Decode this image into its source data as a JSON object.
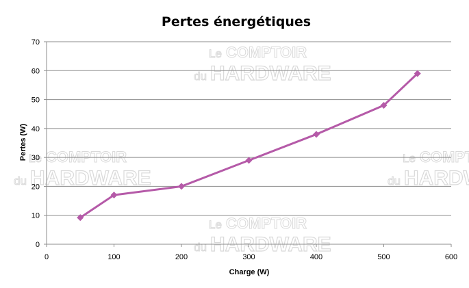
{
  "chart_data": {
    "type": "line",
    "title": "Pertes énergétiques",
    "xlabel": "Charge (W)",
    "ylabel": "Pertes (W)",
    "xlim": [
      0,
      600
    ],
    "ylim": [
      0,
      70
    ],
    "xticks": [
      0,
      100,
      200,
      300,
      400,
      500,
      600
    ],
    "yticks": [
      0,
      10,
      20,
      30,
      40,
      50,
      60,
      70
    ],
    "grid": "horizontal",
    "legend": "none",
    "series": [
      {
        "color": "#b55aa8",
        "marker": "diamond",
        "x": [
          50,
          100,
          200,
          300,
          400,
          500,
          550
        ],
        "y": [
          9.2,
          17,
          20,
          29,
          38,
          48,
          59
        ]
      }
    ]
  },
  "watermark": {
    "small": "Le",
    "small2": "du",
    "big1": "COMPTOIR",
    "big2": "HARDWARE"
  }
}
